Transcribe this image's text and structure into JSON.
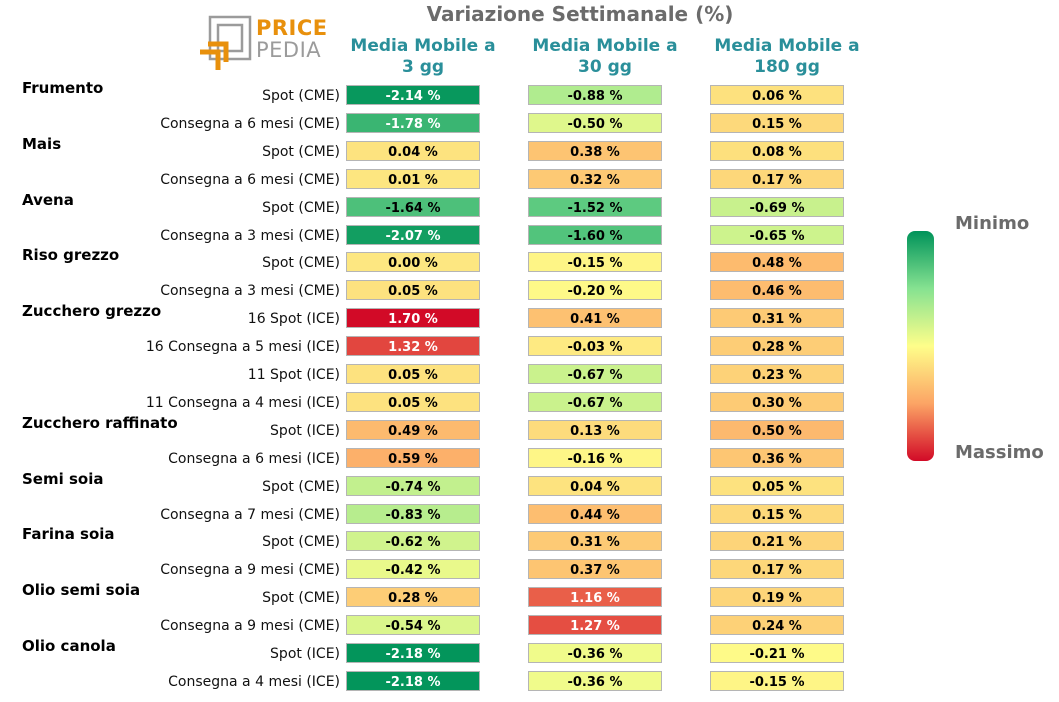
{
  "title": "Variazione Settimanale (%)",
  "logo": {
    "line1": "PRICE",
    "line2": "PEDIA"
  },
  "columns": [
    {
      "line1": "Media Mobile a",
      "line2": "3 gg"
    },
    {
      "line1": "Media Mobile a",
      "line2": "30 gg"
    },
    {
      "line1": "Media Mobile a",
      "line2": "180 gg"
    }
  ],
  "legend": {
    "min_label": "Minimo",
    "max_label": "Massimo",
    "colors": [
      "#00935a",
      "#86e291",
      "#fefe8a",
      "#fca465",
      "#d20a27"
    ]
  },
  "chart_data": {
    "type": "heatmap",
    "title": "Variazione Settimanale (%)",
    "columns": [
      "Media Mobile a 3 gg",
      "Media Mobile a 30 gg",
      "Media Mobile a 180 gg"
    ],
    "rows": [
      {
        "group": "Frumento",
        "contract": "Spot (CME)",
        "values": [
          -2.14,
          -0.88,
          0.06
        ]
      },
      {
        "group": "",
        "contract": "Consegna a 6 mesi (CME)",
        "values": [
          -1.78,
          -0.5,
          0.15
        ]
      },
      {
        "group": "Mais",
        "contract": "Spot (CME)",
        "values": [
          0.04,
          0.38,
          0.08
        ]
      },
      {
        "group": "",
        "contract": "Consegna a 6 mesi (CME)",
        "values": [
          0.01,
          0.32,
          0.17
        ]
      },
      {
        "group": "Avena",
        "contract": "Spot (CME)",
        "values": [
          -1.64,
          -1.52,
          -0.69
        ]
      },
      {
        "group": "",
        "contract": "Consegna a 3 mesi (CME)",
        "values": [
          -2.07,
          -1.6,
          -0.65
        ]
      },
      {
        "group": "Riso grezzo",
        "contract": "Spot (CME)",
        "values": [
          0.0,
          -0.15,
          0.48
        ]
      },
      {
        "group": "",
        "contract": "Consegna a 3 mesi (CME)",
        "values": [
          0.05,
          -0.2,
          0.46
        ]
      },
      {
        "group": "Zucchero grezzo",
        "contract": "16 Spot (ICE)",
        "values": [
          1.7,
          0.41,
          0.31
        ]
      },
      {
        "group": "",
        "contract": "16 Consegna a 5 mesi (ICE)",
        "values": [
          1.32,
          -0.03,
          0.28
        ]
      },
      {
        "group": "",
        "contract": "11 Spot (ICE)",
        "values": [
          0.05,
          -0.67,
          0.23
        ]
      },
      {
        "group": "",
        "contract": "11 Consegna a 4 mesi (ICE)",
        "values": [
          0.05,
          -0.67,
          0.3
        ]
      },
      {
        "group": "Zucchero raffinato",
        "contract": "Spot (ICE)",
        "values": [
          0.49,
          0.13,
          0.5
        ]
      },
      {
        "group": "",
        "contract": "Consegna a 6 mesi (ICE)",
        "values": [
          0.59,
          -0.16,
          0.36
        ]
      },
      {
        "group": "Semi soia",
        "contract": "Spot (CME)",
        "values": [
          -0.74,
          0.04,
          0.05
        ]
      },
      {
        "group": "",
        "contract": "Consegna a 7 mesi (CME)",
        "values": [
          -0.83,
          0.44,
          0.15
        ]
      },
      {
        "group": "Farina soia",
        "contract": "Spot (CME)",
        "values": [
          -0.62,
          0.31,
          0.21
        ]
      },
      {
        "group": "",
        "contract": "Consegna a 9 mesi (CME)",
        "values": [
          -0.42,
          0.37,
          0.17
        ]
      },
      {
        "group": "Olio semi soia",
        "contract": "Spot (CME)",
        "values": [
          0.28,
          1.16,
          0.19
        ]
      },
      {
        "group": "",
        "contract": "Consegna a 9 mesi (CME)",
        "values": [
          -0.54,
          1.27,
          0.24
        ]
      },
      {
        "group": "Olio canola",
        "contract": "Spot (ICE)",
        "values": [
          -2.18,
          -0.36,
          -0.21
        ]
      },
      {
        "group": "",
        "contract": "Consegna a 4 mesi (ICE)",
        "values": [
          -2.18,
          -0.36,
          -0.15
        ]
      }
    ],
    "color_range": [
      -2.2,
      1.7
    ]
  }
}
